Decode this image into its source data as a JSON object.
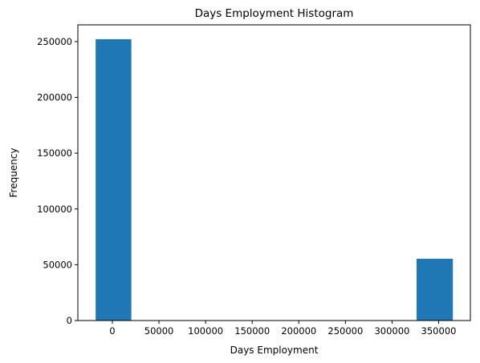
{
  "chart_data": {
    "type": "bar",
    "title": "Days Employment Histogram",
    "xlabel": "Days Employment",
    "ylabel": "Frequency",
    "bars": [
      {
        "x0": -17912,
        "x1": 20336,
        "value": 252137
      },
      {
        "x0": 20336,
        "x1": 58584,
        "value": 0
      },
      {
        "x0": 58584,
        "x1": 96832,
        "value": 0
      },
      {
        "x0": 96832,
        "x1": 135080,
        "value": 0
      },
      {
        "x0": 135080,
        "x1": 173328,
        "value": 0
      },
      {
        "x0": 173328,
        "x1": 211576,
        "value": 0
      },
      {
        "x0": 211576,
        "x1": 249824,
        "value": 0
      },
      {
        "x0": 249824,
        "x1": 288072,
        "value": 0
      },
      {
        "x0": 288072,
        "x1": 326320,
        "value": 0
      },
      {
        "x0": 326320,
        "x1": 365243,
        "value": 55374
      }
    ],
    "xlim": [
      -37000,
      384000
    ],
    "ylim": [
      0,
      265000
    ],
    "xticks": [
      0,
      50000,
      100000,
      150000,
      200000,
      250000,
      300000,
      350000
    ],
    "yticks": [
      0,
      50000,
      100000,
      150000,
      200000,
      250000
    ],
    "bar_color": "#1f77b4",
    "grid": false,
    "legend": "none"
  }
}
